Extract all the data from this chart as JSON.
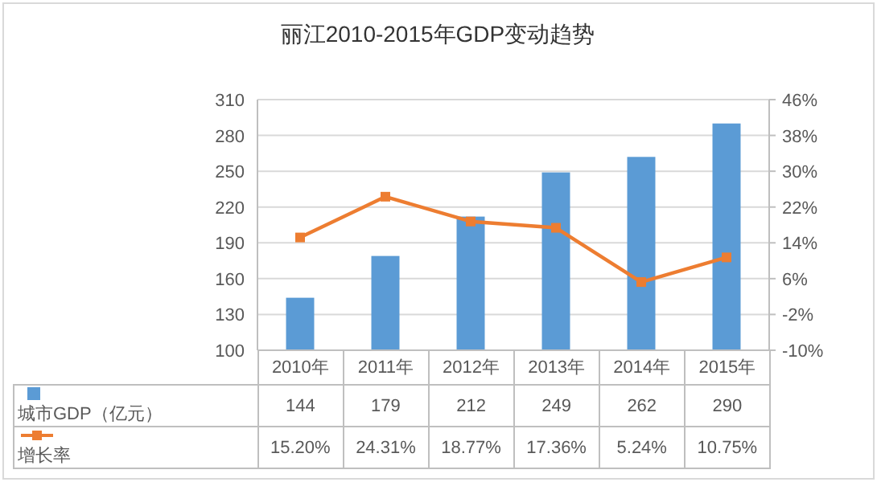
{
  "chart_data": {
    "type": "bar",
    "title": "丽江2010-2015年GDP变动趋势",
    "categories": [
      "2010年",
      "2011年",
      "2012年",
      "2013年",
      "2014年",
      "2015年"
    ],
    "series": [
      {
        "name": "城市GDP（亿元）",
        "color": "#5b9bd5",
        "values": [
          144,
          179,
          212,
          249,
          262,
          290
        ],
        "value_labels": [
          "144",
          "179",
          "212",
          "249",
          "262",
          "290"
        ]
      },
      {
        "name": "增长率",
        "type": "line",
        "axis": "y2",
        "color": "#ed7d31",
        "marker": "square",
        "values": [
          15.2,
          24.31,
          18.77,
          17.36,
          5.24,
          10.75
        ],
        "value_labels": [
          "15.20%",
          "24.31%",
          "18.77%",
          "17.36%",
          "5.24%",
          "10.75%"
        ]
      }
    ],
    "ylim": [
      100,
      310
    ],
    "yticks": [
      100,
      130,
      160,
      190,
      220,
      250,
      280,
      310
    ],
    "y2lim": [
      -10,
      46
    ],
    "y2ticks": [
      {
        "value": -10,
        "label": "-10%"
      },
      {
        "value": -2,
        "label": "-2%"
      },
      {
        "value": 6,
        "label": "6%"
      },
      {
        "value": 14,
        "label": "14%"
      },
      {
        "value": 22,
        "label": "22%"
      },
      {
        "value": 30,
        "label": "30%"
      },
      {
        "value": 38,
        "label": "38%"
      },
      {
        "value": 46,
        "label": "46%"
      }
    ],
    "grid": "y",
    "legend": "bottom"
  }
}
